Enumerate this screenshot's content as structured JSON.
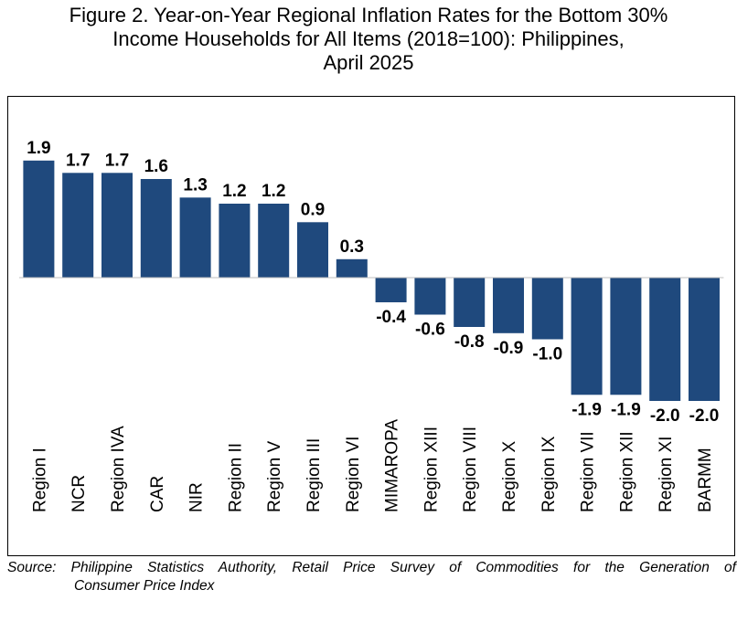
{
  "title": {
    "line1": "Figure 2. Year-on-Year Regional Inflation Rates for the Bottom 30%",
    "line2": "Income Households for All Items (2018=100): Philippines,",
    "line3": "April 2025"
  },
  "source": {
    "line1": "Source: Philippine Statistics Authority, Retail Price Survey of Commodities for the Generation of",
    "line2": "Consumer Price Index"
  },
  "chart_data": {
    "type": "bar",
    "title": "Figure 2. Year-on-Year Regional Inflation Rates for the Bottom 30% Income Households for All Items (2018=100): Philippines, April 2025",
    "categories": [
      "Region I",
      "NCR",
      "Region IVA",
      "CAR",
      "NIR",
      "Region II",
      "Region V",
      "Region III",
      "Region VI",
      "MIMAROPA",
      "Region XIII",
      "Region VIII",
      "Region X",
      "Region IX",
      "Region VII",
      "Region XII",
      "Region XI",
      "BARMM"
    ],
    "values": [
      1.9,
      1.7,
      1.7,
      1.6,
      1.3,
      1.2,
      1.2,
      0.9,
      0.3,
      -0.4,
      -0.6,
      -0.8,
      -0.9,
      -1.0,
      -1.9,
      -1.9,
      -2.0,
      -2.0
    ],
    "data_labels": [
      "1.9",
      "1.7",
      "1.7",
      "1.6",
      "1.3",
      "1.2",
      "1.2",
      "0.9",
      "0.3",
      "-0.4",
      "-0.6",
      "-0.8",
      "-0.9",
      "-1.0",
      "-1.9",
      "-1.9",
      "-2.0",
      "-2.0"
    ],
    "xlabel": "",
    "ylabel": "",
    "ylim": [
      -2.0,
      1.9
    ],
    "grid": false,
    "legend": "none",
    "bar_color": "#1F497D"
  }
}
